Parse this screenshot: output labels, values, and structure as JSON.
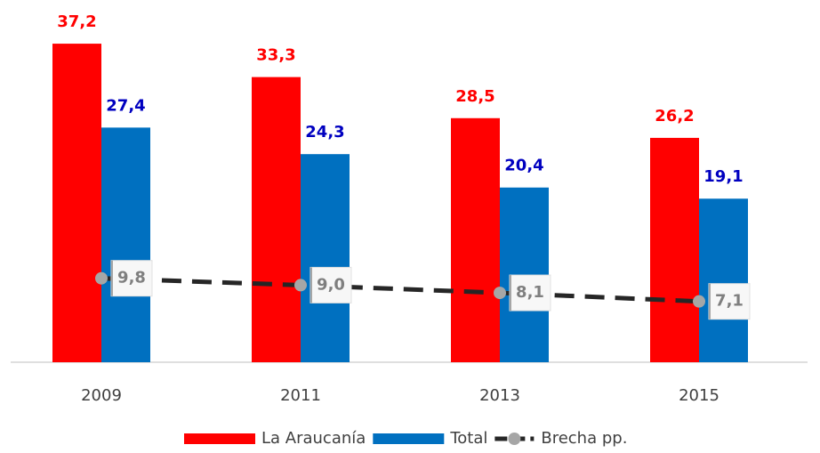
{
  "chart_data": {
    "type": "bar",
    "categories": [
      "2009",
      "2011",
      "2013",
      "2015"
    ],
    "ylim": [
      0,
      42.3
    ],
    "series": [
      {
        "name": "La Araucanía",
        "color": "#ff0000",
        "label_color": "#ff0000",
        "values": [
          37.2,
          33.3,
          28.5,
          26.2
        ],
        "value_labels": [
          "37,2",
          "33,3",
          "28,5",
          "26,2"
        ]
      },
      {
        "name": "Total",
        "color": "#0070c0",
        "label_color": "#0000c0",
        "values": [
          27.4,
          24.3,
          20.4,
          19.1
        ],
        "value_labels": [
          "27,4",
          "24,3",
          "20,4",
          "19,1"
        ]
      },
      {
        "name": "Brecha pp.",
        "type": "line",
        "color": "#262626",
        "marker_color": "#a6a6a6",
        "label_color": "#7f7f7f",
        "values": [
          9.8,
          9.0,
          8.1,
          7.1
        ],
        "value_labels": [
          "9,8",
          "9,0",
          "8,1",
          "7,1"
        ]
      }
    ]
  }
}
